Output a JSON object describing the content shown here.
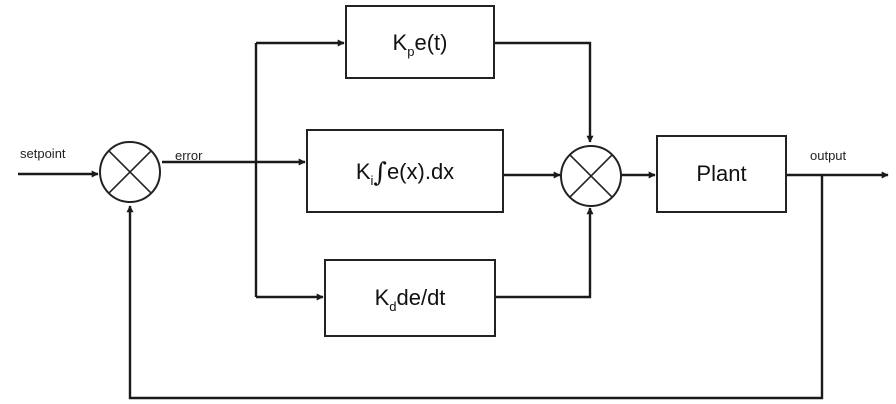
{
  "signals": {
    "setpoint": "setpoint",
    "error": "error",
    "output": "output"
  },
  "blocks": {
    "proportional": {
      "coef": "K",
      "sub": "p",
      "expr": "e(t)"
    },
    "integral": {
      "coef": "K",
      "sub": "i",
      "symbol": "∫",
      "expr": "e(x).dx"
    },
    "derivative": {
      "coef": "K",
      "sub": "d",
      "expr": "de/dt"
    },
    "plant": "Plant"
  }
}
